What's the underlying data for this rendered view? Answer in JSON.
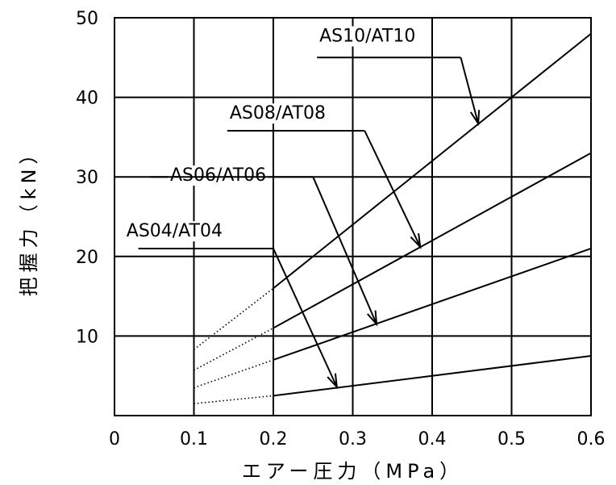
{
  "chart_data": {
    "type": "line",
    "xlabel": "エアー圧力（MPa）",
    "ylabel": "把握力（kN）",
    "xlim": [
      0,
      0.6
    ],
    "ylim": [
      0,
      50
    ],
    "x_ticks": [
      "0",
      "0.1",
      "0.2",
      "0.3",
      "0.4",
      "0.5",
      "0.6"
    ],
    "y_ticks": [
      "10",
      "20",
      "30",
      "40",
      "50"
    ],
    "grid": true,
    "series": [
      {
        "name": "AS04/AT04",
        "x": [
          0.1,
          0.2,
          0.6
        ],
        "y": [
          1.5,
          2.5,
          7.5
        ],
        "dotted_until": 0.2
      },
      {
        "name": "AS06/AT06",
        "x": [
          0.1,
          0.2,
          0.6
        ],
        "y": [
          3.5,
          7.0,
          21.0
        ],
        "dotted_until": 0.2
      },
      {
        "name": "AS08/AT08",
        "x": [
          0.1,
          0.2,
          0.6
        ],
        "y": [
          5.7,
          11.0,
          33.0
        ],
        "dotted_until": 0.2
      },
      {
        "name": "AS10/AT10",
        "x": [
          0.1,
          0.2,
          0.6
        ],
        "y": [
          8.3,
          16.0,
          48.0
        ],
        "dotted_until": 0.2
      }
    ],
    "annotations": [
      {
        "series": "AS04/AT04",
        "text": "AS04/AT04",
        "label_at": [
          0.015,
          22.5
        ],
        "line_from": [
          0.03,
          21.0
        ],
        "line_to": [
          0.2,
          21.0
        ],
        "arrow_to": [
          0.28,
          3.6
        ]
      },
      {
        "series": "AS06/AT06",
        "text": "AS06/AT06",
        "label_at": [
          0.07,
          29.5
        ],
        "line_from": [
          0.045,
          30.0
        ],
        "line_to": [
          0.25,
          30.0
        ],
        "arrow_to": [
          0.33,
          11.5
        ]
      },
      {
        "series": "AS08/AT08",
        "text": "AS08/AT08",
        "label_at": [
          0.145,
          37.3
        ],
        "line_from": [
          0.142,
          35.8
        ],
        "line_to": [
          0.315,
          35.8
        ],
        "arrow_to": [
          0.385,
          21.2
        ]
      },
      {
        "series": "AS10/AT10",
        "text": "AS10/AT10",
        "label_at": [
          0.258,
          47.0
        ],
        "line_from": [
          0.255,
          45.0
        ],
        "line_to": [
          0.436,
          45.0
        ],
        "arrow_to": [
          0.458,
          36.7
        ]
      }
    ]
  }
}
